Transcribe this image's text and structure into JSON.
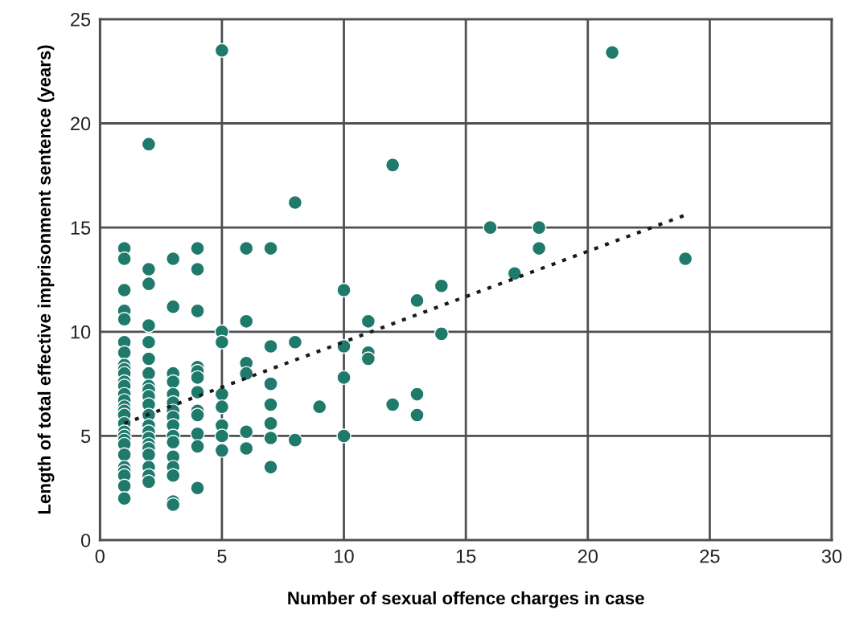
{
  "chart_data": {
    "type": "scatter",
    "xlabel": "Number of sexual offence charges in case",
    "ylabel": "Length of total effective imprisonment sentence (years)",
    "xlim": [
      0,
      30
    ],
    "ylim": [
      0,
      25
    ],
    "xticks": [
      0,
      5,
      10,
      15,
      20,
      25,
      30
    ],
    "yticks": [
      0,
      5,
      10,
      15,
      20,
      25
    ],
    "grid": true,
    "marker": "circle",
    "series": [
      {
        "color": "#1f7a6c",
        "x": [
          1,
          1,
          1,
          1,
          1,
          1,
          1,
          1,
          1,
          1,
          1,
          1,
          1,
          1,
          1,
          1,
          1,
          1,
          1,
          1,
          1,
          1,
          1,
          1,
          1,
          1,
          1,
          1,
          2,
          2,
          2,
          2,
          2,
          2,
          2,
          2,
          2,
          2,
          2,
          2,
          2,
          2,
          2,
          2,
          2,
          2,
          2,
          2,
          2,
          3,
          3,
          3,
          3,
          3,
          3,
          3,
          3,
          3,
          3,
          3,
          3,
          3,
          3,
          3,
          3,
          4,
          4,
          4,
          4,
          4,
          4,
          4,
          4,
          4,
          4,
          4,
          4,
          5,
          5,
          5,
          5,
          5,
          5,
          5,
          5,
          6,
          6,
          6,
          6,
          6,
          6,
          7,
          7,
          7,
          7,
          7,
          7,
          7,
          8,
          8,
          8,
          9,
          10,
          10,
          10,
          10,
          11,
          11,
          11,
          12,
          12,
          13,
          13,
          13,
          14,
          14,
          16,
          17,
          18,
          18,
          21,
          24
        ],
        "values": [
          14,
          13.5,
          12,
          11,
          10.6,
          9.5,
          9,
          8.4,
          8.2,
          8,
          7.6,
          7.4,
          7,
          6.7,
          6.4,
          6.2,
          6,
          5.6,
          5.2,
          5,
          4.8,
          4.6,
          4.1,
          3.5,
          3.3,
          3.1,
          2.6,
          2,
          19,
          13,
          12.3,
          10.3,
          9.5,
          8.7,
          8,
          7.4,
          7.2,
          6.9,
          6.5,
          6,
          5.5,
          5.2,
          4.9,
          4.6,
          4.4,
          4.1,
          3.5,
          3.1,
          2.8,
          13.5,
          11.2,
          8,
          7.6,
          7,
          6.6,
          6.2,
          5.9,
          5.5,
          5,
          4.7,
          4,
          3.5,
          3.1,
          1.85,
          1.7,
          14,
          13,
          11,
          8.3,
          8.1,
          7.8,
          7.1,
          6.2,
          6,
          5.1,
          4.5,
          2.5,
          23.5,
          10,
          9.5,
          7,
          6.4,
          5.5,
          5,
          4.3,
          14,
          10.5,
          8.5,
          8,
          5.2,
          4.4,
          14,
          9.3,
          7.5,
          6.5,
          5.6,
          4.9,
          3.5,
          16.2,
          9.5,
          4.8,
          6.4,
          12,
          9.3,
          7.8,
          5,
          10.5,
          9,
          8.7,
          18,
          6.5,
          11.5,
          7,
          6,
          12.2,
          9.9,
          15,
          12.8,
          15,
          14,
          23.4,
          13.5
        ]
      },
      {
        "type": "line",
        "color": "#1a1a1a",
        "line_style": "dotted",
        "marker": "none",
        "x": [
          1,
          24
        ],
        "values": [
          5.6,
          15.6
        ]
      }
    ]
  }
}
